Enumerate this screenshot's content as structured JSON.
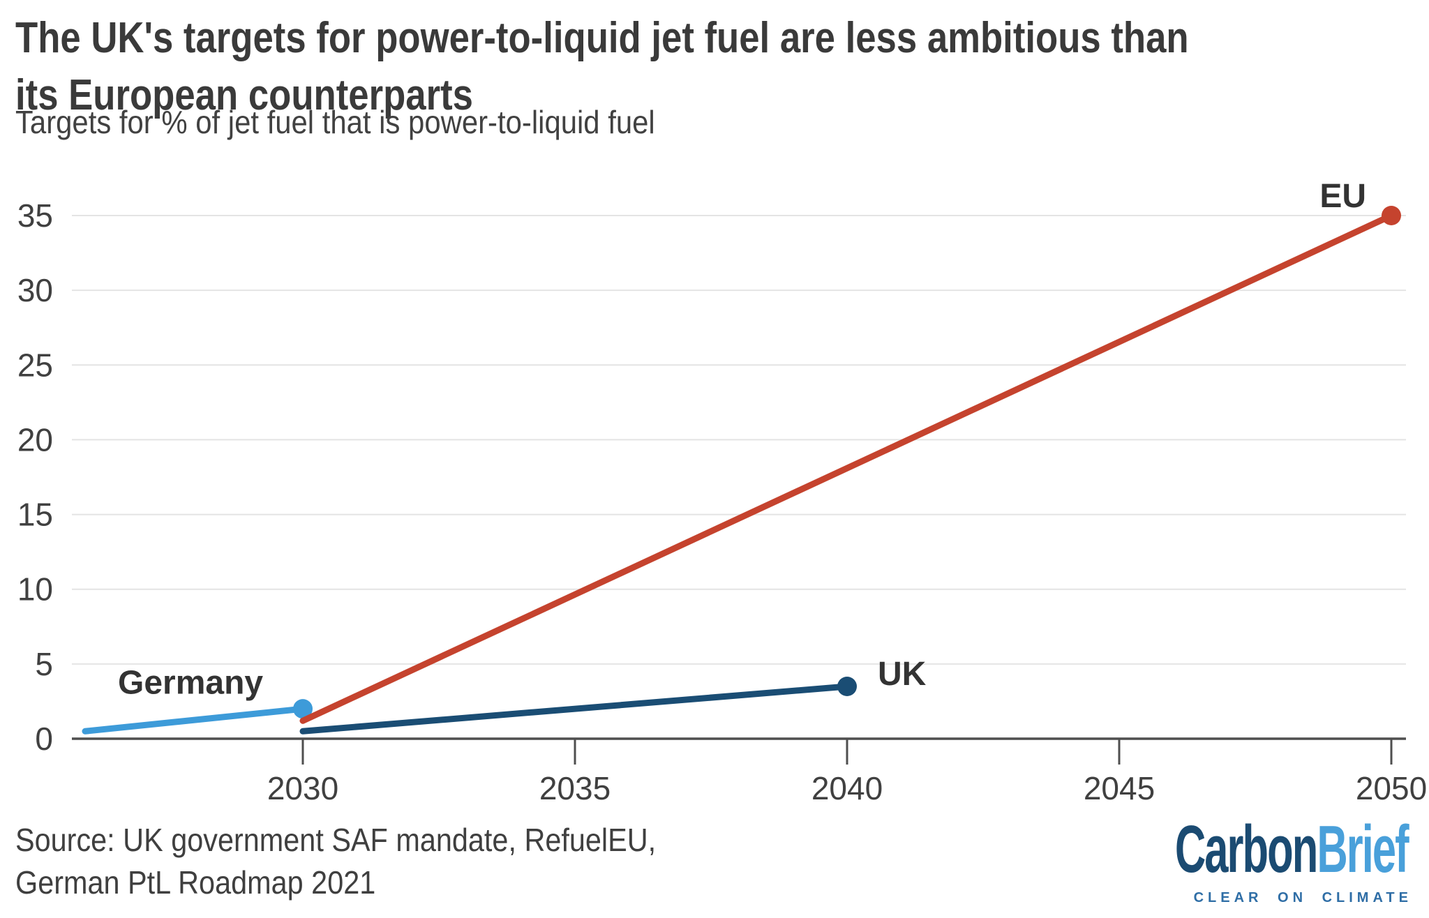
{
  "header": {
    "title_lines": [
      "The UK's targets for power-to-liquid jet fuel are less ambitious than",
      "its European counterparts"
    ],
    "subtitle": "Targets for % of jet fuel that is power-to-liquid fuel"
  },
  "chart_data": {
    "type": "line",
    "title": "The UK's targets for power-to-liquid jet fuel are less ambitious than its European counterparts",
    "subtitle": "Targets for % of jet fuel that is power-to-liquid fuel",
    "xlabel": "",
    "ylabel": "",
    "xlim": [
      2025.7,
      2050.3
    ],
    "ylim": [
      0,
      35
    ],
    "x_ticks": [
      2030,
      2035,
      2040,
      2045,
      2050
    ],
    "y_ticks": [
      0,
      5,
      10,
      15,
      20,
      25,
      30,
      35
    ],
    "grid": "horizontal",
    "legend": "direct-labels-on-chart",
    "series": [
      {
        "name": "Germany",
        "color": "#3d9bd9",
        "x": [
          2026,
          2030
        ],
        "y": [
          0.5,
          2
        ],
        "end_dot": true,
        "label_placement": "above-line-start"
      },
      {
        "name": "UK",
        "color": "#1a4d74",
        "x": [
          2030,
          2040
        ],
        "y": [
          0.5,
          3.5
        ],
        "end_dot": true,
        "label_placement": "right-of-end"
      },
      {
        "name": "EU",
        "color": "#c5432e",
        "x": [
          2030,
          2050
        ],
        "y": [
          1.2,
          35
        ],
        "end_dot": true,
        "label_placement": "above-left-of-end"
      }
    ],
    "source": "Source: UK government SAF mandate, RefuelEU, German PtL Roadmap 2021"
  },
  "footer": {
    "source_lines": [
      "Source: UK government SAF mandate, RefuelEU,",
      "German PtL Roadmap 2021"
    ],
    "logo": {
      "part1": "Carbon",
      "part2": "Brief",
      "tagline": "CLEAR ON CLIMATE",
      "color1": "#1b4b72",
      "color2": "#49a0da",
      "tagline_color": "#2f6ea6"
    }
  },
  "colors": {
    "background": "#ffffff",
    "title_text": "#3a3a3a",
    "tick_text": "#404040",
    "annotation": "#333333",
    "grid": "#e4e4e4",
    "axis": "#4f4f4f"
  }
}
